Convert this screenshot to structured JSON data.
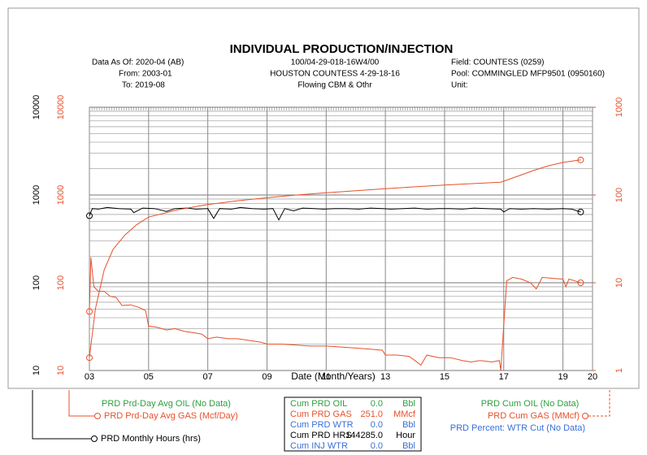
{
  "chart_data": {
    "type": "line",
    "title": "INDIVIDUAL PRODUCTION/INJECTION",
    "header_left": [
      "Data As Of: 2020-04 (AB)",
      "From: 2003-01",
      "To: 2019-08"
    ],
    "header_center": [
      "100/04-29-018-16W4/00",
      "HOUSTON COUNTESS 4-29-18-16",
      "Flowing CBM & Othr"
    ],
    "header_right": [
      "Field: COUNTESS (0259)",
      "Pool: COMMINGLED MFP9501 (0950160)",
      "Unit:"
    ],
    "xlabel": "Date (Month/Years)",
    "xlim": [
      2003,
      2020
    ],
    "xticks": [
      {
        "value": 2003,
        "label": "03"
      },
      {
        "value": 2005,
        "label": "05"
      },
      {
        "value": 2007,
        "label": "07"
      },
      {
        "value": 2009,
        "label": "09"
      },
      {
        "value": 2011,
        "label": "11"
      },
      {
        "value": 2013,
        "label": "13"
      },
      {
        "value": 2015,
        "label": "15"
      },
      {
        "value": 2017,
        "label": "17"
      },
      {
        "value": 2019,
        "label": "19"
      },
      {
        "value": 2020,
        "label": "20"
      }
    ],
    "log_scale": true,
    "grid": true,
    "ylim": [
      10,
      10000
    ],
    "yticks": [
      10,
      100,
      1000,
      10000
    ],
    "y_tick_color": "#000000",
    "y_secondary_ticks": [
      10,
      100,
      1000,
      10000
    ],
    "y_secondary_tick_color": "#e8502a",
    "y2lim": [
      1,
      1000
    ],
    "y2ticks": [
      1,
      10,
      100,
      1000
    ],
    "y2_tick_color": "#e8502a",
    "series": [
      {
        "name": "PRD Monthly Hours (hrs)",
        "color": "#000000",
        "axis": "y",
        "x": [
          2003.0,
          2003.1,
          2003.3,
          2003.6,
          2004.0,
          2004.4,
          2004.5,
          2004.8,
          2005.2,
          2005.6,
          2005.9,
          2006.3,
          2006.6,
          2007.0,
          2007.2,
          2007.4,
          2007.8,
          2008.1,
          2008.5,
          2008.9,
          2009.2,
          2009.4,
          2009.6,
          2009.9,
          2010.2,
          2010.6,
          2010.9,
          2011.3,
          2011.7,
          2012.1,
          2012.5,
          2012.9,
          2013.2,
          2013.6,
          2014.0,
          2014.4,
          2014.8,
          2015.2,
          2015.6,
          2016.0,
          2016.4,
          2016.9,
          2017.0,
          2017.2,
          2017.6,
          2018.0,
          2018.5,
          2019.0,
          2019.3,
          2019.6
        ],
        "values": [
          580,
          700,
          690,
          720,
          700,
          690,
          630,
          710,
          700,
          650,
          700,
          710,
          690,
          700,
          540,
          700,
          690,
          720,
          700,
          690,
          700,
          520,
          700,
          660,
          710,
          700,
          690,
          700,
          700,
          690,
          710,
          700,
          690,
          700,
          710,
          690,
          700,
          700,
          690,
          710,
          700,
          690,
          640,
          700,
          690,
          700,
          690,
          700,
          690,
          640
        ]
      },
      {
        "name": "PRD Prd-Day Avg GAS (Mcf/Day)",
        "color": "#e8502a",
        "axis": "y",
        "x": [
          2003.0,
          2003.05,
          2003.15,
          2003.3,
          2003.5,
          2003.7,
          2003.9,
          2004.1,
          2004.4,
          2004.7,
          2004.9,
          2005.0,
          2005.3,
          2005.6,
          2005.9,
          2006.2,
          2006.5,
          2006.8,
          2007.0,
          2007.3,
          2007.7,
          2008.0,
          2008.4,
          2008.8,
          2009.0,
          2009.5,
          2010.0,
          2010.5,
          2011.0,
          2011.5,
          2012.0,
          2012.5,
          2012.9,
          2013.0,
          2013.4,
          2013.8,
          2014.0,
          2014.2,
          2014.4,
          2014.8,
          2015.2,
          2015.6,
          2015.9,
          2016.2,
          2016.6,
          2016.85,
          2016.9,
          2017.1,
          2017.3,
          2017.6,
          2017.9,
          2018.1,
          2018.3,
          2018.7,
          2019.0,
          2019.1,
          2019.2,
          2019.4,
          2019.6
        ],
        "values": [
          47,
          195,
          90,
          80,
          80,
          70,
          68,
          55,
          56,
          52,
          48,
          32,
          31,
          29,
          30,
          28,
          27,
          26,
          23,
          24,
          23,
          23,
          22,
          21,
          20,
          20,
          19.5,
          19,
          19,
          18.5,
          18,
          17.5,
          17,
          15,
          15,
          14.5,
          13,
          11.5,
          15,
          14,
          14,
          13,
          12.5,
          13,
          12.5,
          13,
          10,
          105,
          115,
          110,
          100,
          85,
          115,
          112,
          110,
          90,
          110,
          105,
          100
        ]
      },
      {
        "name": "PRD Cum GAS (MMcf)",
        "color": "#e8502a",
        "axis": "y2",
        "x": [
          2003.0,
          2003.2,
          2003.5,
          2003.8,
          2004.2,
          2004.6,
          2005.0,
          2006.0,
          2007.0,
          2008.0,
          2009.0,
          2010.0,
          2011.0,
          2012.0,
          2013.0,
          2014.0,
          2015.0,
          2016.0,
          2016.9,
          2017.5,
          2018.0,
          2018.5,
          2019.0,
          2019.6
        ],
        "values": [
          1.4,
          5,
          14,
          24,
          35,
          46,
          56,
          68,
          78,
          86,
          93,
          100,
          106,
          112,
          118,
          124,
          130,
          135,
          140,
          165,
          190,
          215,
          235,
          251
        ]
      }
    ],
    "legend_no_data": [
      {
        "text": "PRD Prd-Day Avg OIL (No Data)",
        "color": "#2e9e3e"
      },
      {
        "text": "PRD Cum OIL (No Data)",
        "color": "#2e9e3e"
      },
      {
        "text": "PRD Percent: WTR Cut (No Data)",
        "color": "#3a6fd8"
      }
    ],
    "summary_table": [
      {
        "label": "Cum PRD OIL",
        "value": "0.0",
        "unit": "Bbl",
        "color": "#2e9e3e"
      },
      {
        "label": "Cum PRD GAS",
        "value": "251.0",
        "unit": "MMcf",
        "color": "#e8502a"
      },
      {
        "label": "Cum PRD WTR",
        "value": "0.0",
        "unit": "Bbl",
        "color": "#3a6fd8"
      },
      {
        "label": "Cum PRD HRS",
        "value": "144285.0",
        "unit": "Hour",
        "color": "#000000"
      },
      {
        "label": "Cum INJ WTR",
        "value": "0.0",
        "unit": "Bbl",
        "color": "#3a6fd8"
      }
    ]
  }
}
